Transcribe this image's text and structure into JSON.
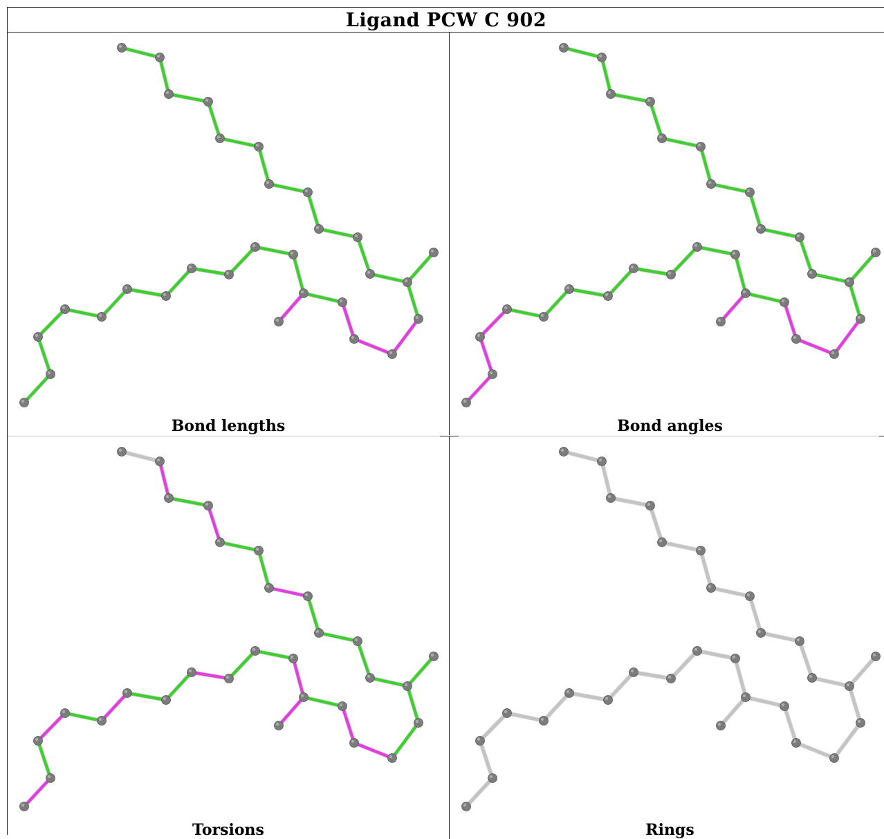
{
  "title": "Ligand PCW C 902",
  "colors": {
    "ok_bond": "#3ccf2e",
    "outlier_bond": "#e33ce0",
    "neutral_bond": "#c4c4c4",
    "atom": "#7c7c7c",
    "border": "#222222"
  },
  "panels": [
    {
      "caption": "Bond lengths",
      "bond_flags": [
        "g",
        "g",
        "g",
        "g",
        "g",
        "g",
        "g",
        "g",
        "g",
        "g",
        "g",
        "g",
        "g",
        "m",
        "m",
        "m",
        "g",
        "g",
        "g",
        "g",
        "g",
        "g",
        "g",
        "g",
        "g",
        "g",
        "g",
        "g",
        "m",
        "m",
        "g"
      ]
    },
    {
      "caption": "Bond angles",
      "bond_flags": [
        "g",
        "g",
        "g",
        "g",
        "g",
        "g",
        "g",
        "g",
        "g",
        "g",
        "g",
        "g",
        "g",
        "m",
        "m",
        "m",
        "g",
        "g",
        "g",
        "g",
        "g",
        "g",
        "g",
        "g",
        "g",
        "m",
        "m",
        "m",
        "m",
        "m",
        "g"
      ]
    },
    {
      "caption": "Torsions",
      "bond_flags": [
        "n",
        "m",
        "g",
        "m",
        "g",
        "g",
        "m",
        "g",
        "g",
        "g",
        "g",
        "g",
        "g",
        "g",
        "m",
        "m",
        "g",
        "m",
        "g",
        "g",
        "m",
        "g",
        "g",
        "m",
        "g",
        "m",
        "g",
        "m",
        "m",
        "g",
        "n"
      ]
    },
    {
      "caption": "Rings",
      "bond_flags": [
        "n",
        "n",
        "n",
        "n",
        "n",
        "n",
        "n",
        "n",
        "n",
        "n",
        "n",
        "n",
        "n",
        "n",
        "n",
        "n",
        "n",
        "n",
        "n",
        "n",
        "n",
        "n",
        "n",
        "n",
        "n",
        "n",
        "n",
        "n",
        "n",
        "n",
        "n"
      ]
    }
  ]
}
